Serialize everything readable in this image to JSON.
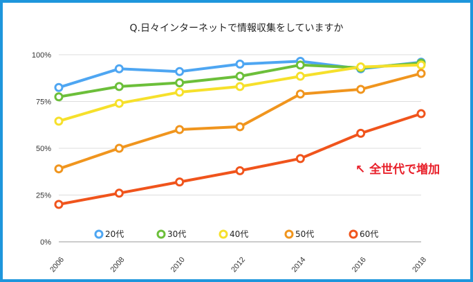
{
  "chart_data": {
    "type": "line",
    "title": "Q.日々インターネットで情報収集をしていますか",
    "x": [
      "2006",
      "2008",
      "2010",
      "2012",
      "2014",
      "2016",
      "2018"
    ],
    "ylim": [
      0,
      100
    ],
    "yticks": [
      "0%",
      "25%",
      "50%",
      "75%",
      "100%"
    ],
    "ytick_values": [
      0,
      25,
      50,
      75,
      100
    ],
    "grid": true,
    "legend_position": "bottom",
    "series": [
      {
        "name": "20代",
        "color": "#4ea6f2",
        "values": [
          82.5,
          92.5,
          91,
          95,
          96.5,
          92.5,
          96
        ]
      },
      {
        "name": "30代",
        "color": "#6cbf3a",
        "values": [
          77.5,
          83,
          85,
          88.5,
          94.5,
          93,
          95.5
        ]
      },
      {
        "name": "40代",
        "color": "#f6e02b",
        "values": [
          64.5,
          74,
          80,
          83,
          88.5,
          93.5,
          94.5
        ]
      },
      {
        "name": "50代",
        "color": "#f0951e",
        "values": [
          39,
          50,
          60,
          61.5,
          79,
          81.5,
          90
        ]
      },
      {
        "name": "60代",
        "color": "#f0541c",
        "values": [
          20,
          26,
          32,
          38,
          44.5,
          58,
          68.5
        ]
      }
    ],
    "annotation": {
      "text": "↖  全世代で増加",
      "color": "#e8202a"
    }
  }
}
